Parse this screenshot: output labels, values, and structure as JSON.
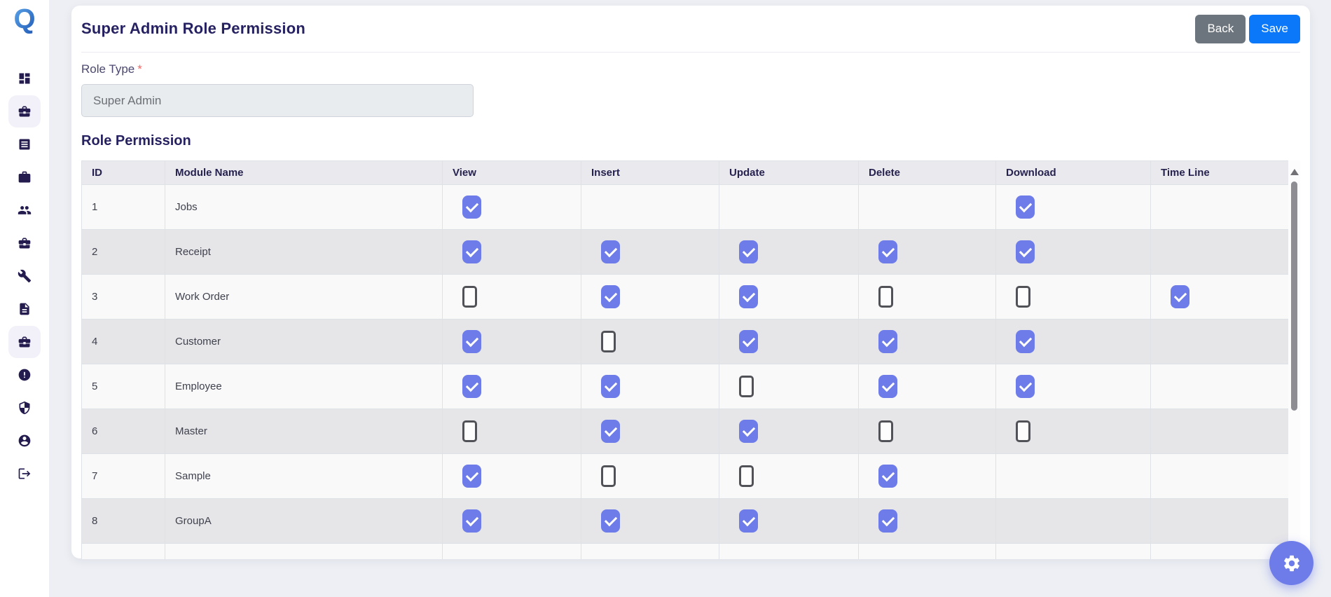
{
  "app": {
    "logo_letter": "Q",
    "colors": {
      "accent": "#6e7ce9",
      "save_button": "#0a78f8",
      "back_button": "#6c757d",
      "required_marker": "#f06a6a",
      "title_text": "#262160"
    }
  },
  "sidebar": {
    "items": [
      {
        "icon": "dashboard-icon",
        "active": false
      },
      {
        "icon": "briefcase-icon",
        "active": true
      },
      {
        "icon": "list-box-icon",
        "active": false
      },
      {
        "icon": "work-bag-icon",
        "active": false
      },
      {
        "icon": "users-icon",
        "active": false
      },
      {
        "icon": "briefcase-icon",
        "active": false
      },
      {
        "icon": "wrench-icon",
        "active": false
      },
      {
        "icon": "document-icon",
        "active": false
      },
      {
        "icon": "briefcase-icon",
        "active": true
      },
      {
        "icon": "alert-circle-icon",
        "active": false
      },
      {
        "icon": "shield-icon",
        "active": false
      },
      {
        "icon": "user-circle-icon",
        "active": false
      },
      {
        "icon": "logout-icon",
        "active": false
      }
    ]
  },
  "header": {
    "title": "Super Admin Role Permission",
    "back_label": "Back",
    "save_label": "Save"
  },
  "form": {
    "role_type_label": "Role Type",
    "required_marker": "*",
    "role_type_value": "Super Admin"
  },
  "table": {
    "section_title": "Role Permission",
    "columns": [
      "ID",
      "Module Name",
      "View",
      "Insert",
      "Update",
      "Delete",
      "Download",
      "Time Line"
    ],
    "rows": [
      {
        "id": "1",
        "module": "Jobs",
        "permissions": [
          "checked",
          "none",
          "none",
          "none",
          "checked",
          "none"
        ]
      },
      {
        "id": "2",
        "module": "Receipt",
        "permissions": [
          "checked",
          "checked",
          "checked",
          "checked",
          "checked",
          "none"
        ]
      },
      {
        "id": "3",
        "module": "Work Order",
        "permissions": [
          "unchecked",
          "checked",
          "checked",
          "unchecked",
          "unchecked",
          "checked"
        ]
      },
      {
        "id": "4",
        "module": "Customer",
        "permissions": [
          "checked",
          "unchecked",
          "checked",
          "checked",
          "checked",
          "none"
        ]
      },
      {
        "id": "5",
        "module": "Employee",
        "permissions": [
          "checked",
          "checked",
          "unchecked",
          "checked",
          "checked",
          "none"
        ]
      },
      {
        "id": "6",
        "module": "Master",
        "permissions": [
          "unchecked",
          "checked",
          "checked",
          "unchecked",
          "unchecked",
          "none"
        ]
      },
      {
        "id": "7",
        "module": "Sample",
        "permissions": [
          "checked",
          "unchecked",
          "unchecked",
          "checked",
          "none",
          "none"
        ]
      },
      {
        "id": "8",
        "module": "GroupA",
        "permissions": [
          "checked",
          "checked",
          "checked",
          "checked",
          "none",
          "none"
        ]
      },
      {
        "id": "",
        "module": "",
        "permissions": [
          "none",
          "none",
          "none",
          "none",
          "none",
          "none"
        ]
      }
    ]
  },
  "fab": {
    "icon": "gear-icon"
  }
}
